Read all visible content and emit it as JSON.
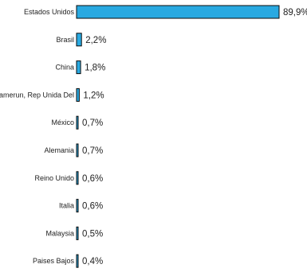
{
  "chart_data": {
    "type": "bar",
    "orientation": "horizontal",
    "title": "",
    "xlabel": "",
    "ylabel": "",
    "grid": false,
    "legend": "none",
    "xlim": [
      0,
      89.9
    ],
    "categories": [
      "Estados Unidos",
      "Brasil",
      "China",
      "Camerun, Rep Unida Del",
      "México",
      "Alemania",
      "Reino Unido",
      "Italia",
      "Malaysia",
      "Paises Bajos"
    ],
    "values": [
      89.9,
      2.2,
      1.8,
      1.2,
      0.7,
      0.7,
      0.6,
      0.6,
      0.5,
      0.4
    ],
    "value_labels": [
      "89,9%",
      "2,2%",
      "1,8%",
      "1,2%",
      "0,7%",
      "0,7%",
      "0,6%",
      "0,6%",
      "0,5%",
      "0,4%"
    ],
    "colors": {
      "bar_fill": "#29a9e1",
      "bar_stroke": "#0a0a0a",
      "text": "#222222"
    }
  }
}
